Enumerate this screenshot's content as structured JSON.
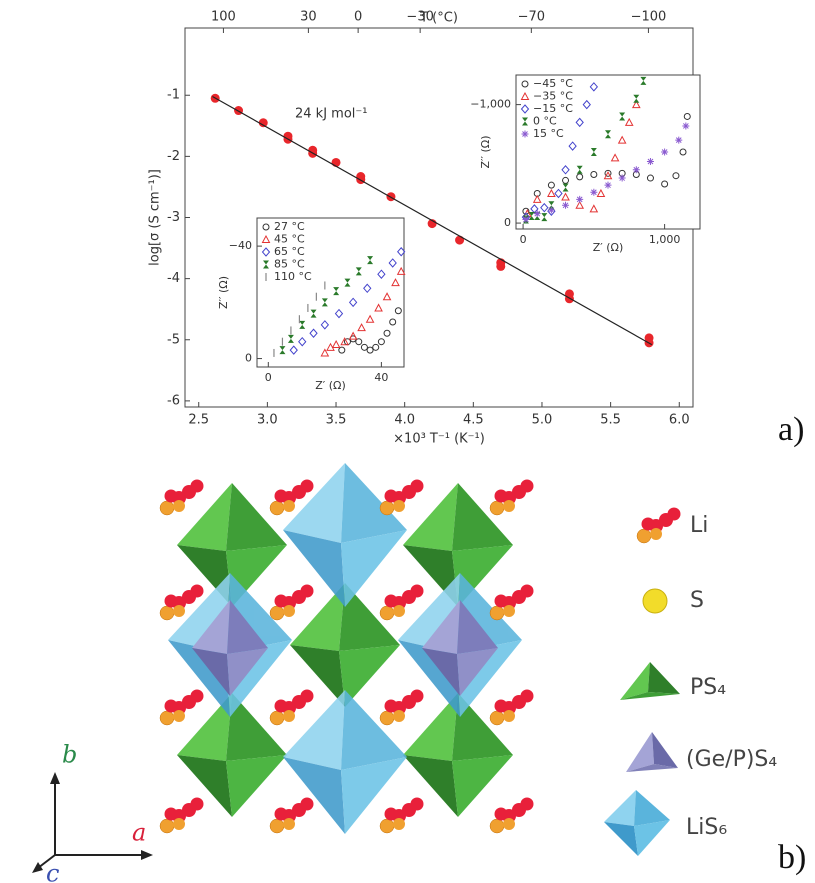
{
  "chart_data": [
    {
      "type": "scatter",
      "xlabel": "×10³ T⁻¹ (K⁻¹)",
      "ylabel": "log[σ (S cm⁻¹)]",
      "x2label": "T (°C)",
      "annotation": "24 kJ mol⁻¹",
      "xlim": [
        2.4,
        6.1
      ],
      "xticks": [
        2.5,
        {
          "value": 3,
          "label": "3.0"
        },
        3.5,
        {
          "value": 4,
          "label": "4.0"
        },
        4.5,
        {
          "value": 5,
          "label": "5.0"
        },
        5.5,
        {
          "value": 6,
          "label": "6.0"
        }
      ],
      "ylim": [
        -6.1,
        0.1
      ],
      "yticks": [
        -6,
        -5,
        -4,
        -3,
        -2,
        -1
      ],
      "x2ticks": [
        100,
        30,
        0,
        {
          "value": -30,
          "label": "−30"
        },
        {
          "value": -70,
          "label": "−70"
        },
        {
          "value": -100,
          "label": "−100"
        }
      ],
      "series": [
        {
          "color": "#e8262b",
          "marker": "dot",
          "x": [
            2.62,
            2.79,
            2.97,
            3.15,
            3.15,
            3.33,
            3.33,
            3.5,
            3.68,
            3.68,
            3.9,
            4.2,
            4.4,
            4.7,
            4.7,
            5.2,
            5.2,
            5.78,
            5.78
          ],
          "values": [
            -1.05,
            -1.25,
            -1.45,
            -1.67,
            -1.72,
            -1.9,
            -1.95,
            -2.1,
            -2.33,
            -2.38,
            -2.66,
            -3.1,
            -3.37,
            -3.74,
            -3.8,
            -4.25,
            -4.33,
            -4.97,
            -5.05
          ]
        },
        {
          "type": "line",
          "color": "#222222",
          "x": [
            2.6,
            5.8
          ],
          "values": [
            -1.02,
            -5.08
          ]
        }
      ]
    },
    {
      "type": "scatter",
      "xlabel": "Z′ (Ω)",
      "ylabel": "Z′′ (Ω)",
      "xlim": [
        -4,
        48
      ],
      "ylim": [
        3,
        -50
      ],
      "xticks": [
        0,
        40
      ],
      "yticks": [
        0,
        {
          "value": -40,
          "label": "−40"
        }
      ],
      "series": [
        {
          "name": "27 °C",
          "color": "#333333",
          "marker": "circle",
          "x": [
            26,
            28,
            30,
            32,
            34,
            36,
            38,
            40,
            42,
            44,
            46
          ],
          "values": [
            -3,
            -6,
            -7,
            -6,
            -4,
            -3,
            -4,
            -6,
            -9,
            -13,
            -17
          ]
        },
        {
          "name": "45 °C",
          "color": "#e33333",
          "marker": "triangle",
          "x": [
            20,
            22,
            24,
            27,
            30,
            33,
            36,
            39,
            42,
            45,
            47
          ],
          "values": [
            -2,
            -4,
            -5,
            -6,
            -8,
            -11,
            -14,
            -18,
            -22,
            -27,
            -31
          ]
        },
        {
          "name": "65 °C",
          "color": "#4444cc",
          "marker": "diamond",
          "x": [
            9,
            12,
            16,
            20,
            25,
            30,
            35,
            40,
            44,
            47
          ],
          "values": [
            -3,
            -6,
            -9,
            -12,
            -16,
            -20,
            -25,
            -30,
            -34,
            -38
          ]
        },
        {
          "name": "85 °C",
          "color": "#2a7a2a",
          "marker": "hourglass",
          "x": [
            5,
            8,
            12,
            16,
            20,
            24,
            28,
            32,
            36
          ],
          "values": [
            -3,
            -7,
            -12,
            -16,
            -20,
            -24,
            -27,
            -31,
            -35
          ]
        },
        {
          "name": "110 °C",
          "color": "#888888",
          "marker": "bar",
          "x": [
            2,
            5,
            8,
            11,
            14,
            17,
            20
          ],
          "values": [
            -2,
            -6,
            -10,
            -14,
            -18,
            -22,
            -26
          ]
        }
      ]
    },
    {
      "type": "scatter",
      "xlabel": "Z′ (Ω)",
      "ylabel": "Z′′ (Ω)",
      "xlim": [
        -50,
        1250
      ],
      "ylim": [
        50,
        -1250
      ],
      "xticks": [
        0,
        {
          "value": 1000,
          "label": "1,000"
        }
      ],
      "yticks": [
        0,
        {
          "value": -1000,
          "label": "−1,000"
        }
      ],
      "series": [
        {
          "name": "−45 °C",
          "color": "#333333",
          "marker": "circle",
          "x": [
            20,
            100,
            200,
            300,
            400,
            500,
            600,
            700,
            800,
            900,
            1000,
            1080,
            1130,
            1160
          ],
          "values": [
            -100,
            -250,
            -320,
            -360,
            -390,
            -410,
            -420,
            -420,
            -410,
            -380,
            -330,
            -400,
            -600,
            -900
          ]
        },
        {
          "name": "−35 °C",
          "color": "#e33333",
          "marker": "triangle",
          "x": [
            30,
            100,
            200,
            300,
            400,
            500,
            550,
            600,
            650,
            700,
            750,
            800
          ],
          "values": [
            -80,
            -200,
            -250,
            -220,
            -150,
            -120,
            -250,
            -400,
            -550,
            -700,
            -850,
            -1000
          ]
        },
        {
          "name": "−15 °C",
          "color": "#4444cc",
          "marker": "diamond",
          "x": [
            20,
            80,
            150,
            200,
            250,
            300,
            350,
            400,
            450,
            500
          ],
          "values": [
            -50,
            -120,
            -130,
            -100,
            -250,
            -450,
            -650,
            -850,
            -1000,
            -1150
          ]
        },
        {
          "name": "0 °C",
          "color": "#2a7a2a",
          "marker": "hourglass",
          "x": [
            20,
            60,
            100,
            150,
            200,
            300,
            400,
            500,
            600,
            700,
            800,
            850
          ],
          "values": [
            -30,
            -60,
            -60,
            -50,
            -150,
            -300,
            -450,
            -600,
            -750,
            -900,
            -1050,
            -1200
          ]
        },
        {
          "name": "15 °C",
          "color": "#8a5ad0",
          "marker": "asterisk",
          "x": [
            20,
            100,
            200,
            300,
            400,
            500,
            600,
            700,
            800,
            900,
            1000,
            1100,
            1150
          ],
          "values": [
            -30,
            -80,
            -110,
            -150,
            -200,
            -260,
            -320,
            -380,
            -450,
            -520,
            -600,
            -700,
            -820
          ]
        }
      ]
    }
  ],
  "structure": {
    "legend": [
      "Li",
      "S",
      "PS₄",
      "(Ge/P)S₄",
      "LiS₆"
    ],
    "axes": [
      "a",
      "b",
      "c"
    ]
  },
  "panels": [
    "a)",
    "b)"
  ]
}
